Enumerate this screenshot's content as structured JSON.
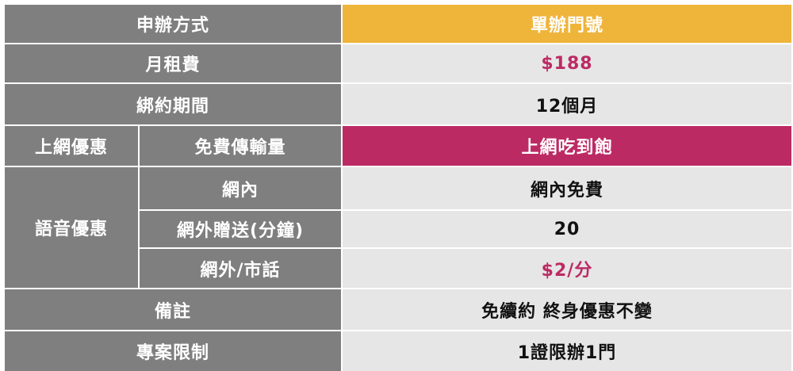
{
  "header": {
    "method_label": "申辦方式",
    "plan_name": "單辦門號"
  },
  "rows": {
    "monthly_fee": {
      "label": "月租費",
      "value": "$188"
    },
    "contract": {
      "label": "綁約期間",
      "value": "12個月"
    },
    "data_offer": {
      "group": "上網優惠",
      "label": "免費傳輸量",
      "value": "上網吃到飽"
    },
    "voice_offer": {
      "group": "語音優惠",
      "on_net": {
        "label": "網內",
        "value": "網內免費"
      },
      "off_net_free": {
        "label": "網外贈送(分鐘)",
        "value": "20"
      },
      "off_net_rate": {
        "label": "網外/市話",
        "value": "$2/分"
      }
    },
    "remarks": {
      "label": "備註",
      "value": "免續約 終身優惠不變"
    },
    "restriction": {
      "label": "專案限制",
      "value": "1證限辦1門"
    }
  },
  "colors": {
    "header_gray": "#7f7f7f",
    "plan_orange": "#efb43a",
    "highlight_magenta": "#bc2a64",
    "value_gray": "#e6e6e6"
  }
}
